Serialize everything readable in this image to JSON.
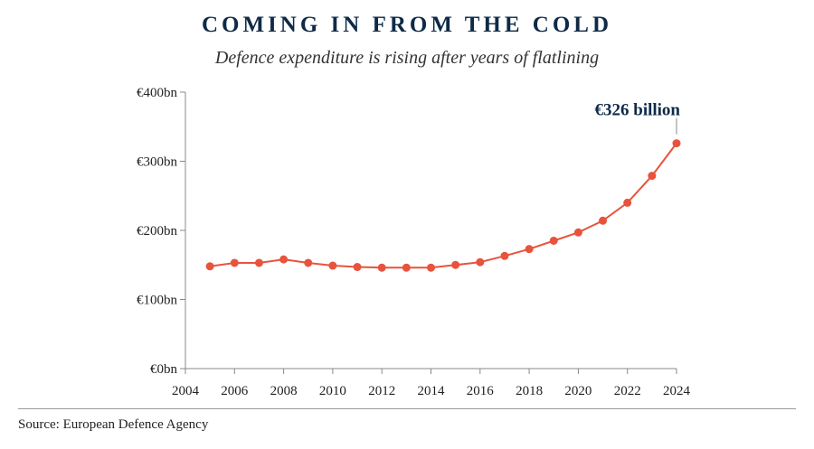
{
  "title": "COMING IN FROM THE COLD",
  "subtitle": "Defence expenditure is rising after years of flatlining",
  "source": "Source: European Defence Agency",
  "colors": {
    "line": "#e8533d",
    "title": "#0e2a47",
    "axis": "#888888"
  },
  "chart_data": {
    "type": "line",
    "x": [
      2005,
      2006,
      2007,
      2008,
      2009,
      2010,
      2011,
      2012,
      2013,
      2014,
      2015,
      2016,
      2017,
      2018,
      2019,
      2020,
      2021,
      2022,
      2023,
      2024
    ],
    "series": [
      {
        "values": [
          148,
          153,
          153,
          158,
          153,
          149,
          147,
          146,
          146,
          146,
          150,
          154,
          163,
          173,
          185,
          197,
          214,
          240,
          279,
          326
        ]
      }
    ],
    "xticks": [
      2004,
      2006,
      2008,
      2010,
      2012,
      2014,
      2016,
      2018,
      2020,
      2022,
      2024
    ],
    "xtick_labels": [
      "2004",
      "2006",
      "2008",
      "2010",
      "2012",
      "2014",
      "2016",
      "2018",
      "2020",
      "2022",
      "2024"
    ],
    "yticks": [
      0,
      100,
      200,
      300,
      400
    ],
    "ytick_labels": [
      "€0bn",
      "€100bn",
      "€200bn",
      "€300bn",
      "€400bn"
    ],
    "xlim": [
      2004,
      2024
    ],
    "ylim": [
      0,
      400
    ],
    "grid": false,
    "annotation": {
      "text": "€326 billion",
      "x": 2024,
      "y": 326
    }
  }
}
